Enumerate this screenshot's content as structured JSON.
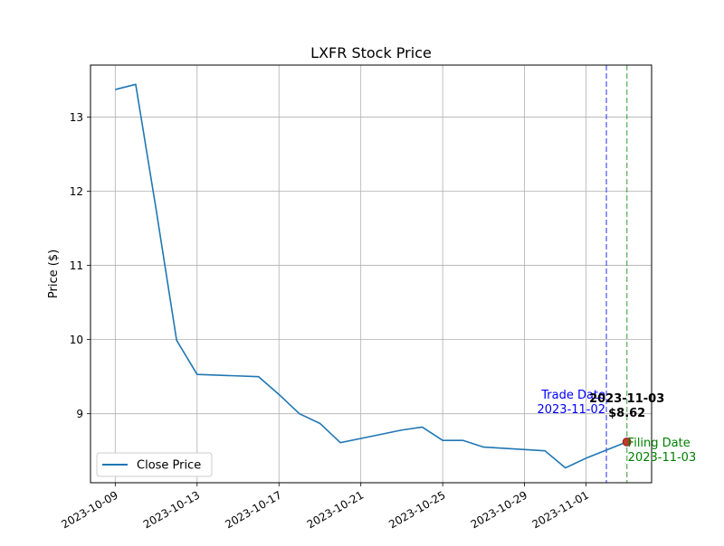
{
  "chart_data": {
    "type": "line",
    "title": "LXFR Stock Price",
    "xlabel": "",
    "ylabel": "Price ($)",
    "x_ticks": [
      "2023-10-09",
      "2023-10-13",
      "2023-10-17",
      "2023-10-21",
      "2023-10-25",
      "2023-10-29",
      "2023-11-01"
    ],
    "y_ticks": [
      9,
      10,
      11,
      12,
      13
    ],
    "ylim": [
      8.07,
      13.7
    ],
    "xlim": [
      "2023-10-07 19:00",
      "2023-11-04 05:00"
    ],
    "grid": true,
    "legend_position": "lower-left",
    "series": [
      {
        "name": "Close Price",
        "color": "#1f77b4",
        "x": [
          "2023-10-09",
          "2023-10-10",
          "2023-10-11",
          "2023-10-12",
          "2023-10-13",
          "2023-10-16",
          "2023-10-17",
          "2023-10-18",
          "2023-10-19",
          "2023-10-20",
          "2023-10-23",
          "2023-10-24",
          "2023-10-25",
          "2023-10-26",
          "2023-10-27",
          "2023-10-30",
          "2023-10-31",
          "2023-11-01",
          "2023-11-02",
          "2023-11-03"
        ],
        "values": [
          13.37,
          13.44,
          11.75,
          9.99,
          9.53,
          9.5,
          9.26,
          9.0,
          8.87,
          8.61,
          8.78,
          8.82,
          8.64,
          8.64,
          8.55,
          8.5,
          8.27,
          8.4,
          8.51,
          8.62
        ]
      }
    ],
    "vlines": [
      {
        "date": "2023-11-02",
        "color": "#0000ff",
        "label": "Trade Date",
        "sublabel": "2023-11-02"
      },
      {
        "date": "2023-11-03",
        "color": "#008000",
        "label": "Filing Date",
        "sublabel": "2023-11-03"
      }
    ],
    "highlight": {
      "date": "2023-11-03",
      "value": 8.62,
      "label_date": "2023-11-03",
      "label_price": "$8.62",
      "color": "#c0392b"
    }
  }
}
